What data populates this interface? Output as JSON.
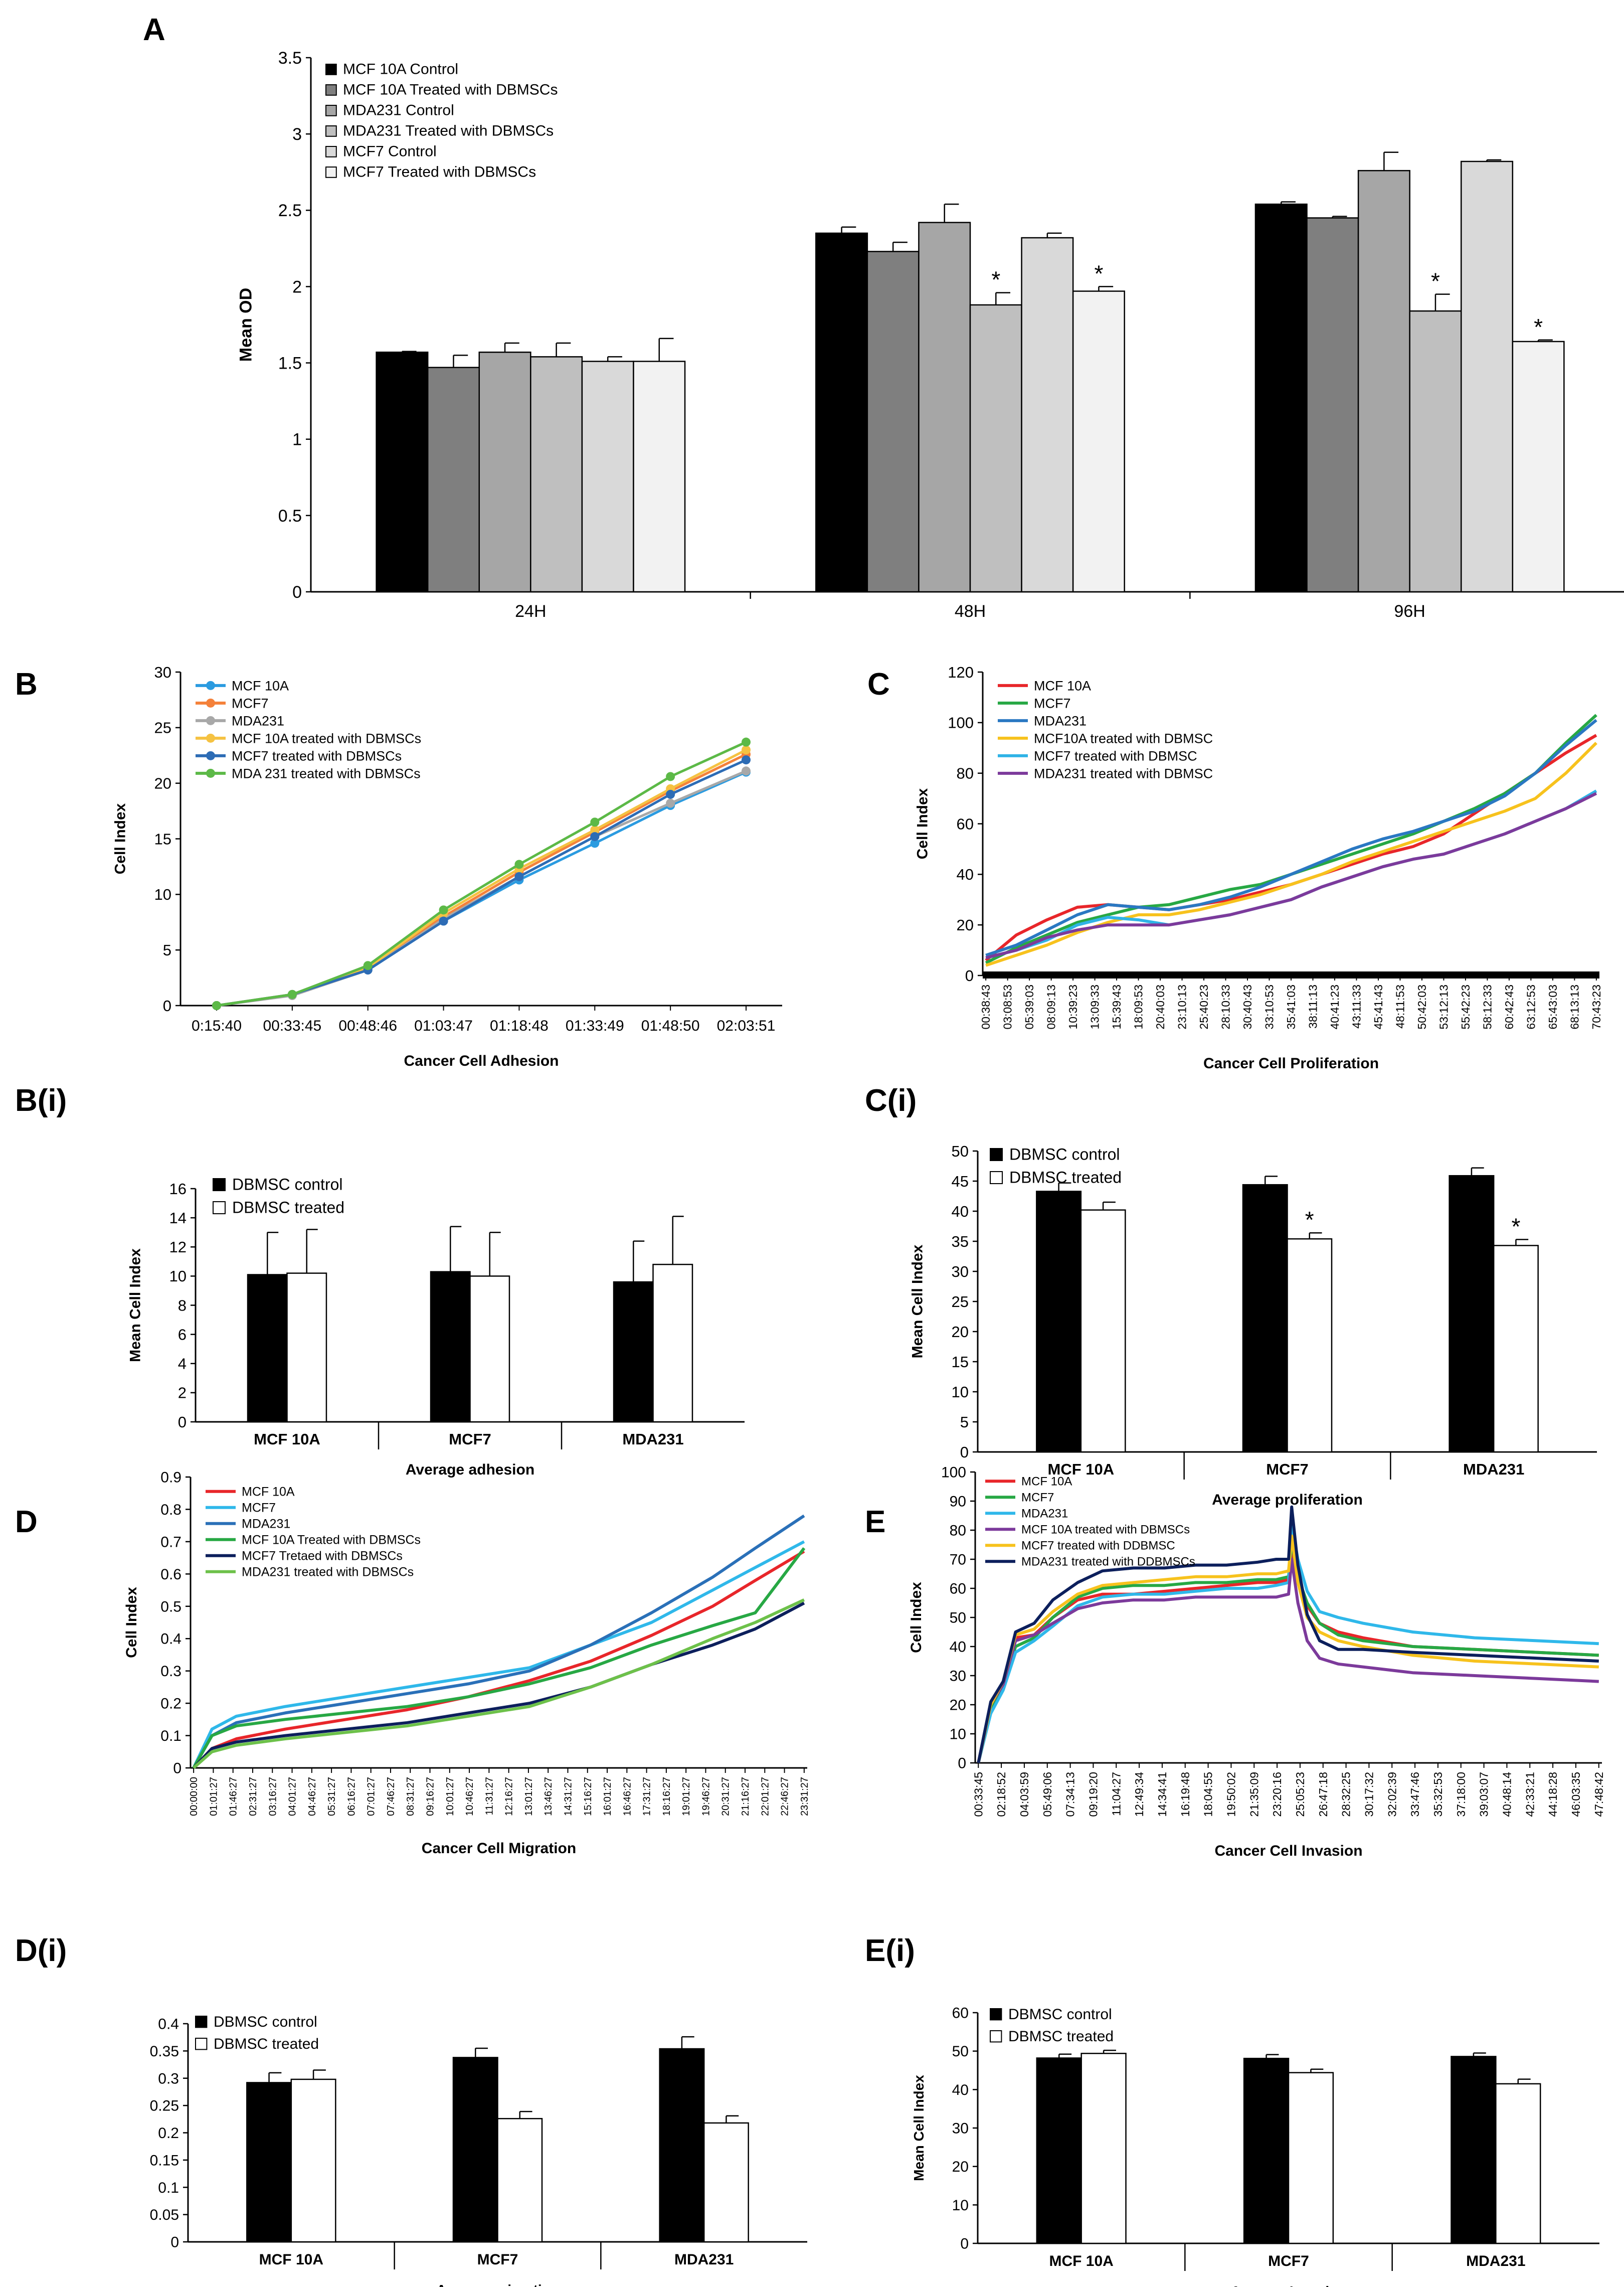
{
  "figure": {
    "panel_labels": [
      "A",
      "B",
      "C",
      "B(i)",
      "C(i)",
      "D",
      "E",
      "D(i)",
      "E(i)"
    ]
  },
  "chart_data": [
    {
      "id": "A",
      "type": "bar",
      "ylabel": "Mean OD",
      "ylim": [
        0,
        3.5
      ],
      "yticks": [
        "0",
        "0.5",
        "1",
        "1.5",
        "2",
        "2.5",
        "3",
        "3.5"
      ],
      "categories": [
        "24H",
        "48H",
        "96H"
      ],
      "series": [
        {
          "name": "MCF 10A Control",
          "color": "#000000",
          "values": [
            1.57,
            2.35,
            2.54
          ],
          "errors": [
            0.005,
            0.04,
            0.015
          ]
        },
        {
          "name": "MCF 10A Treated with DBMSCs",
          "color": "#7f7f7f",
          "values": [
            1.47,
            2.23,
            2.45
          ],
          "errors": [
            0.08,
            0.06,
            0.01
          ]
        },
        {
          "name": "MDA231 Control",
          "color": "#a6a6a6",
          "values": [
            1.57,
            2.42,
            2.76
          ],
          "errors": [
            0.06,
            0.12,
            0.12
          ]
        },
        {
          "name": "MDA231  Treated with DBMSCs",
          "color": "#bfbfbf",
          "values": [
            1.54,
            1.88,
            1.84
          ],
          "errors": [
            0.09,
            0.08,
            0.11
          ]
        },
        {
          "name": "MCF7 Control",
          "color": "#d9d9d9",
          "values": [
            1.51,
            2.32,
            2.82
          ],
          "errors": [
            0.03,
            0.03,
            0.01
          ]
        },
        {
          "name": "MCF7  Treated with DBMSCs",
          "color": "#f2f2f2",
          "values": [
            1.51,
            1.97,
            1.64
          ],
          "errors": [
            0.15,
            0.03,
            0.01
          ]
        }
      ],
      "stars": [
        "*",
        "*",
        "*",
        "*"
      ]
    },
    {
      "id": "B",
      "type": "line",
      "title": "Cancer Cell Adhesion",
      "ylabel": "Cell Index",
      "ylim": [
        0,
        30
      ],
      "yticks": [
        "0",
        "5",
        "10",
        "15",
        "20",
        "25",
        "30"
      ],
      "xticks": [
        "0:15:40",
        "00:33:45",
        "00:48:46",
        "01:03:47",
        "01:18:48",
        "01:33:49",
        "01:48:50",
        "02:03:51"
      ],
      "series": [
        {
          "name": "MCF 10A",
          "color": "#2b9be0",
          "values": [
            0,
            1.0,
            3.2,
            7.6,
            11.3,
            14.6,
            18.0,
            21.0
          ]
        },
        {
          "name": "MCF7",
          "color": "#f4813a",
          "values": [
            0,
            1.0,
            3.4,
            8.0,
            12.0,
            15.6,
            19.3,
            22.6
          ]
        },
        {
          "name": "MDA231",
          "color": "#a8a8a8",
          "values": [
            0,
            0.9,
            3.2,
            7.8,
            11.6,
            15.2,
            18.2,
            21.1
          ]
        },
        {
          "name": "MCF 10A treated with DBMSCs",
          "color": "#f5c242",
          "values": [
            0,
            1.0,
            3.4,
            8.3,
            12.3,
            15.8,
            19.5,
            23.0
          ]
        },
        {
          "name": "MCF7 treated with DBMSCs",
          "color": "#2d6cb5",
          "values": [
            0,
            1.0,
            3.2,
            7.6,
            11.6,
            15.2,
            19.0,
            22.1
          ]
        },
        {
          "name": "MDA 231 treated with DBMSCs",
          "color": "#5cb947",
          "values": [
            0,
            1.0,
            3.6,
            8.6,
            12.7,
            16.5,
            20.6,
            23.7
          ]
        }
      ]
    },
    {
      "id": "C",
      "type": "line",
      "title": "Cancer Cell Proliferation",
      "ylabel": "Cell Index",
      "ylim": [
        0,
        120
      ],
      "yticks": [
        "0",
        "20",
        "40",
        "60",
        "80",
        "100",
        "120"
      ],
      "xticks": [
        "00:38:43",
        "03:08:53",
        "05:39:03",
        "08:09:13",
        "10:39:23",
        "13:09:33",
        "15:39:43",
        "18:09:53",
        "20:40:03",
        "23:10:13",
        "25:40:23",
        "28:10:33",
        "30:40:43",
        "33:10:53",
        "35:41:03",
        "38:11:13",
        "40:41:23",
        "43:11:33",
        "45:41:43",
        "48:11:53",
        "50:42:03",
        "53:12:13",
        "55:42:23",
        "58:12:33",
        "60:42:43",
        "63:12:53",
        "65:43:03",
        "68:13:13",
        "70:43:23"
      ],
      "x": [
        0,
        0.05,
        0.1,
        0.15,
        0.2,
        0.25,
        0.3,
        0.35,
        0.4,
        0.45,
        0.5,
        0.55,
        0.6,
        0.65,
        0.7,
        0.75,
        0.8,
        0.85,
        0.9,
        0.95,
        1.0
      ],
      "series": [
        {
          "name": "MCF 10A",
          "color": "#e8262a",
          "values": [
            6,
            16,
            22,
            27,
            28,
            27,
            26,
            28,
            30,
            33,
            36,
            40,
            44,
            48,
            51,
            56,
            64,
            72,
            80,
            88,
            95
          ]
        },
        {
          "name": "MCF7",
          "color": "#27a844",
          "values": [
            5,
            11,
            16,
            21,
            24,
            27,
            28,
            31,
            34,
            36,
            40,
            44,
            48,
            52,
            56,
            61,
            66,
            72,
            80,
            92,
            103
          ]
        },
        {
          "name": "MDA231",
          "color": "#2a78c2",
          "values": [
            8,
            12,
            18,
            24,
            28,
            27,
            26,
            28,
            31,
            35,
            40,
            45,
            50,
            54,
            57,
            61,
            65,
            71,
            80,
            91,
            101
          ]
        },
        {
          "name": "MCF10A treated with DBMSC",
          "color": "#f7c21d",
          "values": [
            4,
            8,
            12,
            17,
            21,
            24,
            24,
            26,
            29,
            32,
            36,
            40,
            45,
            49,
            53,
            57,
            61,
            65,
            70,
            80,
            92
          ]
        },
        {
          "name": "MCF7 treated with DBMSC",
          "color": "#2fb3e6",
          "values": [
            7,
            10,
            14,
            20,
            23,
            22,
            20,
            22,
            24,
            27,
            30,
            35,
            39,
            43,
            46,
            48,
            52,
            56,
            61,
            66,
            73
          ]
        },
        {
          "name": "MDA231 treated with DBMSC",
          "color": "#7c3a9b",
          "values": [
            7,
            10,
            15,
            18,
            20,
            20,
            20,
            22,
            24,
            27,
            30,
            35,
            39,
            43,
            46,
            48,
            52,
            56,
            61,
            66,
            72
          ]
        }
      ]
    },
    {
      "id": "B(i)",
      "type": "bar",
      "title": "Average adhesion",
      "ylabel": "Mean Cell Index",
      "ylim": [
        0,
        16
      ],
      "yticks": [
        "0",
        "2",
        "4",
        "6",
        "8",
        "10",
        "12",
        "14",
        "16"
      ],
      "categories": [
        "MCF 10A",
        "MCF7",
        "MDA231"
      ],
      "series": [
        {
          "name": "DBMSC control",
          "color": "#000000",
          "values": [
            10.1,
            10.3,
            9.6
          ],
          "errors": [
            2.9,
            3.1,
            2.8
          ]
        },
        {
          "name": "DBMSC treated",
          "color": "#ffffff",
          "values": [
            10.2,
            10.0,
            10.8
          ],
          "errors": [
            3.0,
            3.0,
            3.3
          ]
        }
      ],
      "stars": []
    },
    {
      "id": "C(i)",
      "type": "bar",
      "title": "Average proliferation",
      "ylabel": "Mean Cell Index",
      "ylim": [
        0,
        50
      ],
      "yticks": [
        "0",
        "5",
        "10",
        "15",
        "20",
        "25",
        "30",
        "35",
        "40",
        "45",
        "50"
      ],
      "categories": [
        "MCF 10A",
        "MCF7",
        "MDA231"
      ],
      "series": [
        {
          "name": "DBMSC control",
          "color": "#000000",
          "values": [
            43.3,
            44.4,
            45.9
          ],
          "errors": [
            1.4,
            1.4,
            1.3
          ]
        },
        {
          "name": "DBMSC treated",
          "color": "#ffffff",
          "values": [
            40.2,
            35.4,
            34.3
          ],
          "errors": [
            1.3,
            1.0,
            1.0
          ]
        }
      ],
      "stars": [
        "*",
        "*"
      ]
    },
    {
      "id": "D",
      "type": "line",
      "title": "Cancer Cell Migration",
      "ylabel": "Cell Index",
      "ylim": [
        0,
        0.9
      ],
      "yticks": [
        "0",
        "0.1",
        "0.2",
        "0.3",
        "0.4",
        "0.5",
        "0.6",
        "0.7",
        "0.8",
        "0.9"
      ],
      "xticks": [
        "00:00:00",
        "01:01:27",
        "01:46:27",
        "02:31:27",
        "03:16:27",
        "04:01:27",
        "04:46:27",
        "05:31:27",
        "06:16:27",
        "07:01:27",
        "07:46:27",
        "08:31:27",
        "09:16:27",
        "10:01:27",
        "10:46:27",
        "11:31:27",
        "12:16:27",
        "13:01:27",
        "13:46:27",
        "14:31:27",
        "15:16:27",
        "16:01:27",
        "16:46:27",
        "17:31:27",
        "18:16:27",
        "19:01:27",
        "19:46:27",
        "20:31:27",
        "21:16:27",
        "22:01:27",
        "22:46:27",
        "23:31:27"
      ],
      "x": [
        0,
        0.03,
        0.07,
        0.15,
        0.25,
        0.35,
        0.45,
        0.55,
        0.65,
        0.75,
        0.85,
        0.92,
        1.0
      ],
      "series": [
        {
          "name": "MCF 10A",
          "color": "#e8262a",
          "values": [
            0,
            0.06,
            0.09,
            0.12,
            0.15,
            0.18,
            0.22,
            0.27,
            0.33,
            0.41,
            0.5,
            0.58,
            0.67
          ]
        },
        {
          "name": "MCF7",
          "color": "#2fb8ea",
          "values": [
            0,
            0.12,
            0.16,
            0.19,
            0.22,
            0.25,
            0.28,
            0.31,
            0.38,
            0.45,
            0.55,
            0.62,
            0.7
          ]
        },
        {
          "name": "MDA231",
          "color": "#2a70b8",
          "values": [
            0,
            0.1,
            0.14,
            0.17,
            0.2,
            0.23,
            0.26,
            0.3,
            0.38,
            0.48,
            0.59,
            0.68,
            0.78
          ]
        },
        {
          "name": "MCF 10A Treated with DBMSCs",
          "color": "#27a844",
          "values": [
            0,
            0.1,
            0.13,
            0.15,
            0.17,
            0.19,
            0.22,
            0.26,
            0.31,
            0.38,
            0.44,
            0.48,
            0.68
          ]
        },
        {
          "name": "MCF7 Tretaed with DBMSCs",
          "color": "#0c1f5c",
          "values": [
            0,
            0.06,
            0.08,
            0.1,
            0.12,
            0.14,
            0.17,
            0.2,
            0.25,
            0.32,
            0.38,
            0.43,
            0.51
          ]
        },
        {
          "name": "MDA231 treated with DBMSCs",
          "color": "#6dc14a",
          "values": [
            0,
            0.05,
            0.07,
            0.09,
            0.11,
            0.13,
            0.16,
            0.19,
            0.25,
            0.32,
            0.4,
            0.45,
            0.52
          ]
        }
      ]
    },
    {
      "id": "E",
      "type": "line",
      "title": "Cancer Cell Invasion",
      "ylabel": "Cell Index",
      "ylim": [
        0,
        100
      ],
      "yticks": [
        "0",
        "10",
        "20",
        "30",
        "40",
        "50",
        "60",
        "70",
        "80",
        "90",
        "100"
      ],
      "xticks": [
        "00:33:45",
        "02:18:52",
        "04:03:59",
        "05:49:06",
        "07:34:13",
        "09:19:20",
        "11:04:27",
        "12:49:34",
        "14:34:41",
        "16:19:48",
        "18:04:55",
        "19:50:02",
        "21:35:09",
        "23:20:16",
        "25:05:23",
        "26:47:18",
        "28:32:25",
        "30:17:32",
        "32:02:39",
        "33:47:46",
        "35:32:53",
        "37:18:00",
        "39:03:07",
        "40:48:14",
        "42:33:21",
        "44:18:28",
        "46:03:35",
        "47:48:42"
      ],
      "x": [
        0,
        0.02,
        0.04,
        0.06,
        0.09,
        0.12,
        0.16,
        0.2,
        0.25,
        0.3,
        0.35,
        0.4,
        0.45,
        0.48,
        0.5,
        0.505,
        0.515,
        0.53,
        0.55,
        0.58,
        0.62,
        0.7,
        0.8,
        0.9,
        1.0
      ],
      "series": [
        {
          "name": "MCF 10A",
          "color": "#e8262a",
          "values": [
            0,
            20,
            27,
            43,
            44,
            50,
            56,
            58,
            58,
            59,
            60,
            61,
            62,
            62,
            63,
            73,
            62,
            54,
            48,
            45,
            43,
            40,
            39,
            38,
            37
          ]
        },
        {
          "name": "MCF7",
          "color": "#27a844",
          "values": [
            0,
            18,
            26,
            40,
            43,
            50,
            57,
            60,
            61,
            61,
            62,
            62,
            63,
            63,
            64,
            76,
            64,
            55,
            48,
            44,
            42,
            40,
            39,
            38,
            37
          ]
        },
        {
          "name": "MDA231",
          "color": "#2fb8ea",
          "values": [
            0,
            17,
            25,
            38,
            42,
            47,
            54,
            57,
            58,
            58,
            59,
            60,
            60,
            61,
            62,
            82,
            70,
            59,
            52,
            50,
            48,
            45,
            43,
            42,
            41
          ]
        },
        {
          "name": "MCF 10A treated with DBMSCs",
          "color": "#7c3a9b",
          "values": [
            0,
            20,
            27,
            42,
            44,
            48,
            53,
            55,
            56,
            56,
            57,
            57,
            57,
            57,
            58,
            70,
            55,
            42,
            36,
            34,
            33,
            31,
            30,
            29,
            28
          ]
        },
        {
          "name": "MCF7 treated with DDBMSC",
          "color": "#f7c21d",
          "values": [
            0,
            20,
            28,
            44,
            46,
            52,
            58,
            61,
            62,
            63,
            64,
            64,
            65,
            65,
            66,
            78,
            62,
            50,
            45,
            42,
            40,
            37,
            35,
            34,
            33
          ]
        },
        {
          "name": "MDA231 treated with DDBMSCs",
          "color": "#0c1f5c",
          "values": [
            0,
            21,
            28,
            45,
            48,
            56,
            62,
            66,
            67,
            67,
            68,
            68,
            69,
            70,
            70,
            88,
            68,
            51,
            42,
            39,
            39,
            38,
            37,
            36,
            35
          ]
        }
      ]
    },
    {
      "id": "D(i)",
      "type": "bar",
      "title": "Average migration",
      "ylabel": "",
      "ylim": [
        0,
        0.4
      ],
      "yticks": [
        "0",
        "0.05",
        "0.1",
        "0.15",
        "0.2",
        "0.25",
        "0.3",
        "0.35",
        "0.4"
      ],
      "categories": [
        "MCF 10A",
        "MCF7",
        "MDA231"
      ],
      "series": [
        {
          "name": "DBMSC control",
          "color": "#000000",
          "values": [
            0.292,
            0.338,
            0.354
          ],
          "errors": [
            0.018,
            0.017,
            0.022
          ]
        },
        {
          "name": "DBMSC treated",
          "color": "#ffffff",
          "values": [
            0.298,
            0.226,
            0.218
          ],
          "errors": [
            0.017,
            0.013,
            0.013
          ]
        }
      ],
      "stars": []
    },
    {
      "id": "E(i)",
      "type": "bar",
      "title": "Average Invasion",
      "ylabel": "Mean Cell Index",
      "ylim": [
        0,
        60
      ],
      "yticks": [
        "0",
        "10",
        "20",
        "30",
        "40",
        "50",
        "60"
      ],
      "categories": [
        "MCF 10A",
        "MCF7",
        "MDA231"
      ],
      "series": [
        {
          "name": "DBMSC control",
          "color": "#000000",
          "values": [
            48.2,
            48.1,
            48.6
          ],
          "errors": [
            1.0,
            1.0,
            0.9
          ]
        },
        {
          "name": "DBMSC treated",
          "color": "#ffffff",
          "values": [
            49.4,
            44.4,
            41.5
          ],
          "errors": [
            0.8,
            0.9,
            1.2
          ]
        }
      ],
      "stars": []
    }
  ]
}
